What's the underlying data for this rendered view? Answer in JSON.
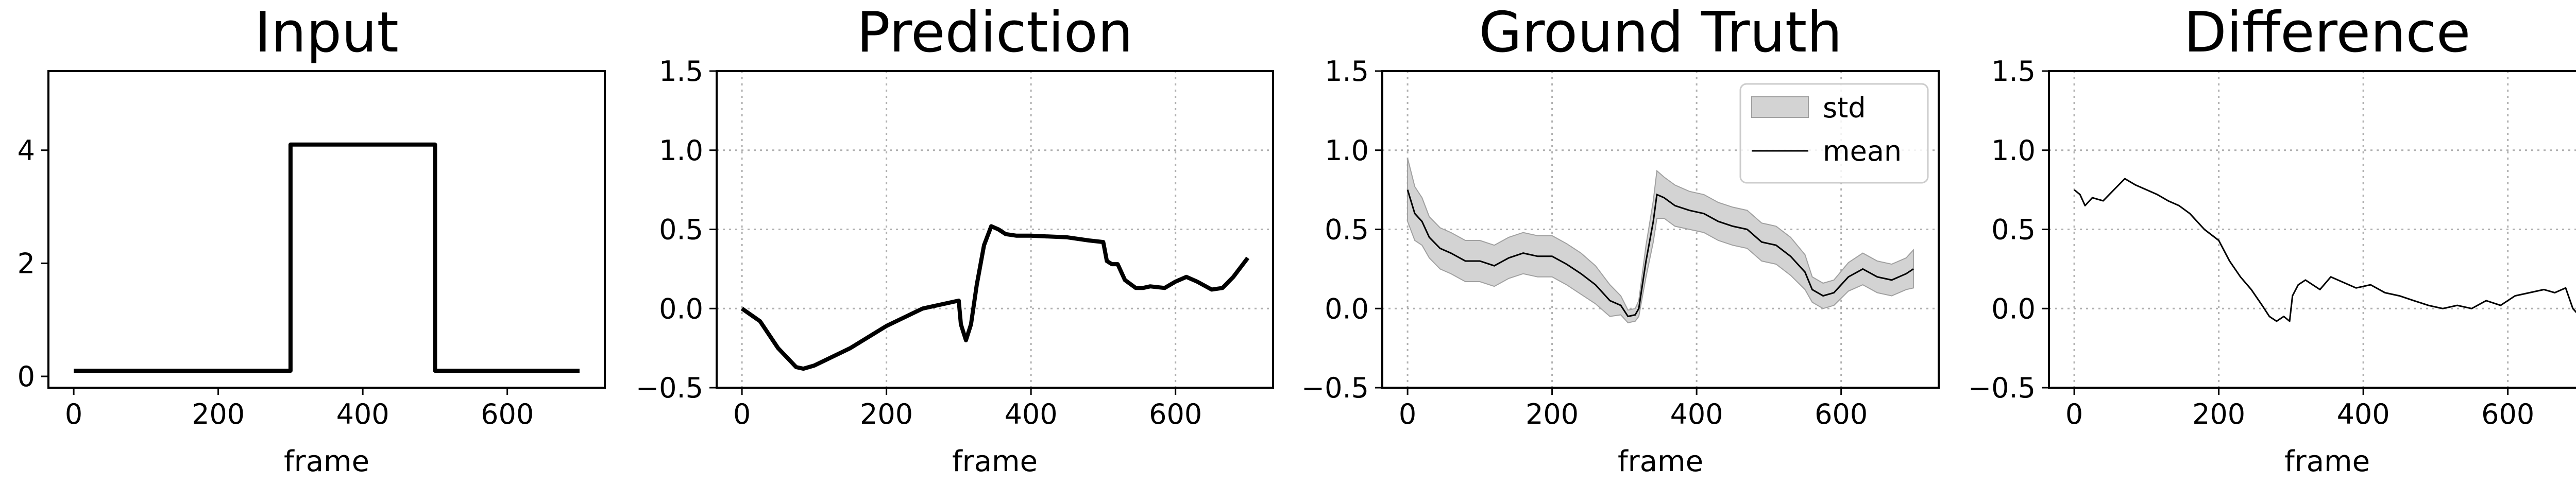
{
  "chart_data": [
    {
      "type": "line",
      "title": "Input",
      "xlabel": "frame",
      "ylabel": "",
      "xlim": [
        -35,
        735
      ],
      "ylim": [
        -0.2,
        5.4
      ],
      "xticks": [
        0,
        200,
        400,
        600
      ],
      "yticks": [
        0,
        2,
        4
      ],
      "grid": false,
      "series": [
        {
          "x": [
            0,
            300,
            300,
            500,
            500,
            700
          ],
          "y": [
            0.1,
            0.1,
            4.1,
            4.1,
            0.1,
            0.1
          ]
        }
      ]
    },
    {
      "type": "line",
      "title": "Prediction",
      "xlabel": "frame",
      "ylabel": "",
      "xlim": [
        -35,
        735
      ],
      "ylim": [
        -0.5,
        1.5
      ],
      "xticks": [
        0,
        200,
        400,
        600
      ],
      "yticks": [
        -0.5,
        0.0,
        0.5,
        1.0,
        1.5
      ],
      "grid": true,
      "series": [
        {
          "x": [
            0,
            25,
            50,
            75,
            85,
            100,
            150,
            200,
            250,
            300,
            303,
            310,
            317,
            325,
            335,
            345,
            355,
            365,
            380,
            400,
            450,
            480,
            500,
            505,
            512,
            520,
            530,
            545,
            555,
            565,
            585,
            600,
            615,
            630,
            650,
            665,
            680,
            700
          ],
          "y": [
            0.0,
            -0.08,
            -0.25,
            -0.37,
            -0.38,
            -0.36,
            -0.25,
            -0.11,
            0.0,
            0.05,
            -0.1,
            -0.2,
            -0.1,
            0.15,
            0.4,
            0.52,
            0.5,
            0.47,
            0.46,
            0.46,
            0.45,
            0.43,
            0.42,
            0.3,
            0.28,
            0.28,
            0.18,
            0.13,
            0.13,
            0.14,
            0.13,
            0.17,
            0.2,
            0.17,
            0.12,
            0.13,
            0.2,
            0.32
          ]
        }
      ]
    },
    {
      "type": "area",
      "title": "Ground Truth",
      "xlabel": "frame",
      "ylabel": "",
      "xlim": [
        -35,
        735
      ],
      "ylim": [
        -0.5,
        1.5
      ],
      "xticks": [
        0,
        200,
        400,
        600
      ],
      "yticks": [
        -0.5,
        0.0,
        0.5,
        1.0,
        1.5
      ],
      "grid": true,
      "legend": {
        "placement": "upper right",
        "entries": [
          "std",
          "mean"
        ]
      },
      "series": [
        {
          "name": "mean",
          "x": [
            0,
            10,
            20,
            30,
            45,
            60,
            80,
            100,
            120,
            140,
            160,
            180,
            200,
            220,
            240,
            260,
            280,
            295,
            305,
            315,
            320,
            330,
            340,
            345,
            355,
            370,
            390,
            410,
            430,
            450,
            470,
            490,
            510,
            530,
            550,
            560,
            575,
            590,
            610,
            630,
            650,
            670,
            690,
            700
          ],
          "y": [
            0.75,
            0.6,
            0.55,
            0.45,
            0.38,
            0.35,
            0.3,
            0.3,
            0.27,
            0.32,
            0.35,
            0.33,
            0.33,
            0.28,
            0.22,
            0.15,
            0.05,
            0.02,
            -0.05,
            -0.04,
            0.0,
            0.3,
            0.55,
            0.72,
            0.7,
            0.65,
            0.62,
            0.6,
            0.55,
            0.52,
            0.5,
            0.42,
            0.4,
            0.33,
            0.23,
            0.12,
            0.08,
            0.1,
            0.2,
            0.25,
            0.2,
            0.18,
            0.22,
            0.25
          ]
        },
        {
          "name": "std",
          "spread": [
            0.2,
            0.17,
            0.15,
            0.13,
            0.13,
            0.13,
            0.13,
            0.13,
            0.13,
            0.13,
            0.13,
            0.13,
            0.13,
            0.13,
            0.13,
            0.12,
            0.1,
            0.06,
            0.04,
            0.04,
            0.05,
            0.1,
            0.13,
            0.15,
            0.13,
            0.13,
            0.12,
            0.12,
            0.12,
            0.12,
            0.12,
            0.12,
            0.12,
            0.12,
            0.11,
            0.08,
            0.08,
            0.08,
            0.09,
            0.1,
            0.1,
            0.1,
            0.1,
            0.12
          ]
        }
      ]
    },
    {
      "type": "line",
      "title": "Difference",
      "xlabel": "frame",
      "ylabel": "",
      "xlim": [
        -35,
        735
      ],
      "ylim": [
        -0.5,
        1.5
      ],
      "xticks": [
        0,
        200,
        400,
        600
      ],
      "yticks": [
        -0.5,
        0.0,
        0.5,
        1.0,
        1.5
      ],
      "grid": true,
      "series": [
        {
          "x": [
            0,
            8,
            15,
            25,
            40,
            55,
            70,
            85,
            100,
            115,
            130,
            145,
            160,
            180,
            200,
            215,
            230,
            245,
            260,
            270,
            280,
            290,
            298,
            302,
            310,
            320,
            330,
            340,
            355,
            370,
            390,
            410,
            430,
            450,
            470,
            490,
            510,
            530,
            550,
            570,
            590,
            610,
            630,
            650,
            665,
            680,
            690,
            700
          ],
          "y": [
            0.75,
            0.72,
            0.65,
            0.7,
            0.68,
            0.75,
            0.82,
            0.78,
            0.75,
            0.72,
            0.68,
            0.65,
            0.6,
            0.5,
            0.43,
            0.3,
            0.2,
            0.12,
            0.02,
            -0.05,
            -0.08,
            -0.05,
            -0.08,
            0.08,
            0.15,
            0.18,
            0.15,
            0.12,
            0.2,
            0.17,
            0.13,
            0.15,
            0.1,
            0.08,
            0.05,
            0.02,
            0.0,
            0.02,
            0.0,
            0.05,
            0.02,
            0.08,
            0.1,
            0.12,
            0.1,
            0.13,
            0.0,
            -0.05
          ]
        }
      ]
    }
  ]
}
